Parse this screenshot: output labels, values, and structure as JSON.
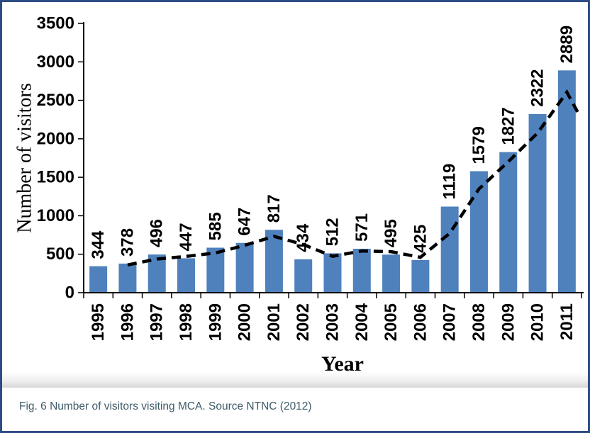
{
  "caption": {
    "text": "Fig. 6 Number of visitors visiting MCA. Source NTNC (2012)"
  },
  "frame": {
    "border_color": "#2d4c83",
    "caption_color": "#3e5b68"
  },
  "chart_data": {
    "type": "bar",
    "title": "",
    "xlabel": "Year",
    "ylabel": "Number of visitors",
    "categories": [
      "1995",
      "1996",
      "1997",
      "1998",
      "1999",
      "2000",
      "2001",
      "2002",
      "2003",
      "2004",
      "2005",
      "2006",
      "2007",
      "2008",
      "2009",
      "2010",
      "2011"
    ],
    "values": [
      344,
      378,
      496,
      447,
      585,
      647,
      817,
      434,
      512,
      571,
      495,
      425,
      1119,
      1579,
      1827,
      2322,
      2889
    ],
    "ylim": [
      0,
      3500
    ],
    "ytick_step": 500,
    "grid": false,
    "legend": "none",
    "bar_color": "#4f81bd",
    "data_labels": "rotated 90deg above bars",
    "trendline": {
      "type": "2-period moving average",
      "style": "black dashed",
      "x": [
        1996,
        1997,
        1998,
        1999,
        2000,
        2001,
        2002,
        2003,
        2004,
        2005,
        2006,
        2007,
        2008,
        2009,
        2010,
        2011
      ],
      "values": [
        361,
        437,
        472,
        516,
        616,
        732,
        626,
        473,
        542,
        533,
        460,
        772,
        1349,
        1703,
        2075,
        2606
      ],
      "end_stub": {
        "x_offset_categories": 0.45,
        "value": 2290
      }
    }
  }
}
